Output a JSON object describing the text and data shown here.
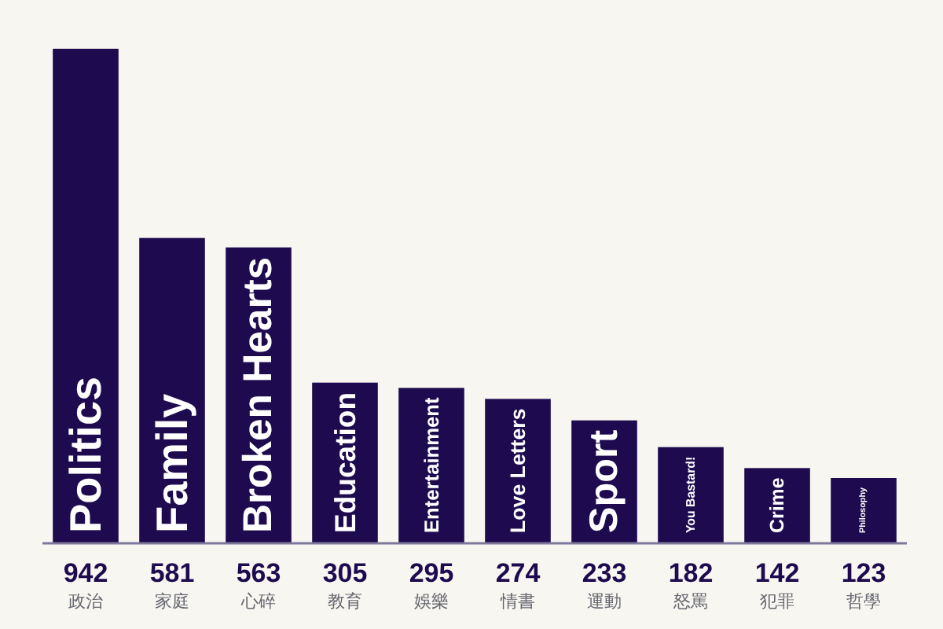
{
  "chart_data": {
    "type": "bar",
    "categories": [
      "Politics",
      "Family",
      "Broken Hearts",
      "Education",
      "Entertainment",
      "Love Letters",
      "Sport",
      "You Bastard!",
      "Crime",
      "Philosophy"
    ],
    "values": [
      942,
      581,
      563,
      305,
      295,
      274,
      233,
      182,
      142,
      123
    ],
    "color": "#1e0b4f",
    "data_labels": true,
    "annotations": [
      "政治",
      "家庭",
      "心碎",
      "教育",
      "娛樂",
      "情書",
      "運動",
      "怒罵",
      "犯罪",
      "哲學"
    ]
  }
}
